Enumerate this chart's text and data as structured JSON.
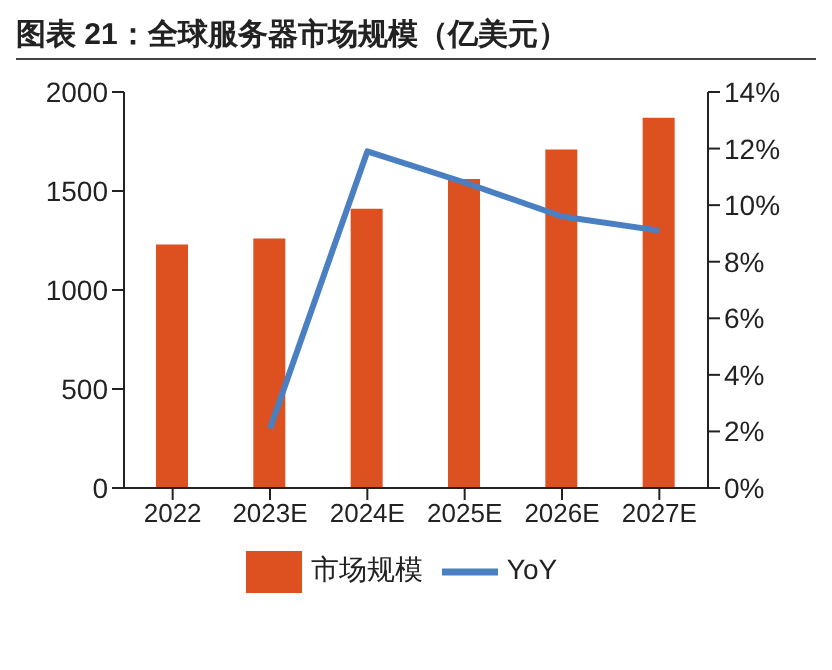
{
  "chart_data": {
    "type": "bar",
    "title": "图表 21：全球服务器市场规模（亿美元）",
    "categories": [
      "2022",
      "2023E",
      "2024E",
      "2025E",
      "2026E",
      "2027E"
    ],
    "series": [
      {
        "name": "市场规模",
        "color": "#dd5020",
        "values": [
          1230,
          1260,
          1410,
          1560,
          1710,
          1870
        ]
      },
      {
        "name": "YoY",
        "type": "line",
        "axis": "y2",
        "color": "#4a7fc1",
        "marker": "none",
        "values": [
          null,
          2.1,
          11.9,
          10.8,
          9.6,
          9.1
        ]
      }
    ],
    "ylim": [
      0,
      2000
    ],
    "yticks": [
      0,
      500,
      1000,
      1500,
      2000
    ],
    "y2lim": [
      0,
      14
    ],
    "y2ticks": [
      {
        "value": 0,
        "label": "0%"
      },
      {
        "value": 2,
        "label": "2%"
      },
      {
        "value": 4,
        "label": "4%"
      },
      {
        "value": 6,
        "label": "6%"
      },
      {
        "value": 8,
        "label": "8%"
      },
      {
        "value": 10,
        "label": "10%"
      },
      {
        "value": 12,
        "label": "12%"
      },
      {
        "value": 14,
        "label": "14%"
      }
    ],
    "grid": false,
    "legend": "bottom"
  }
}
